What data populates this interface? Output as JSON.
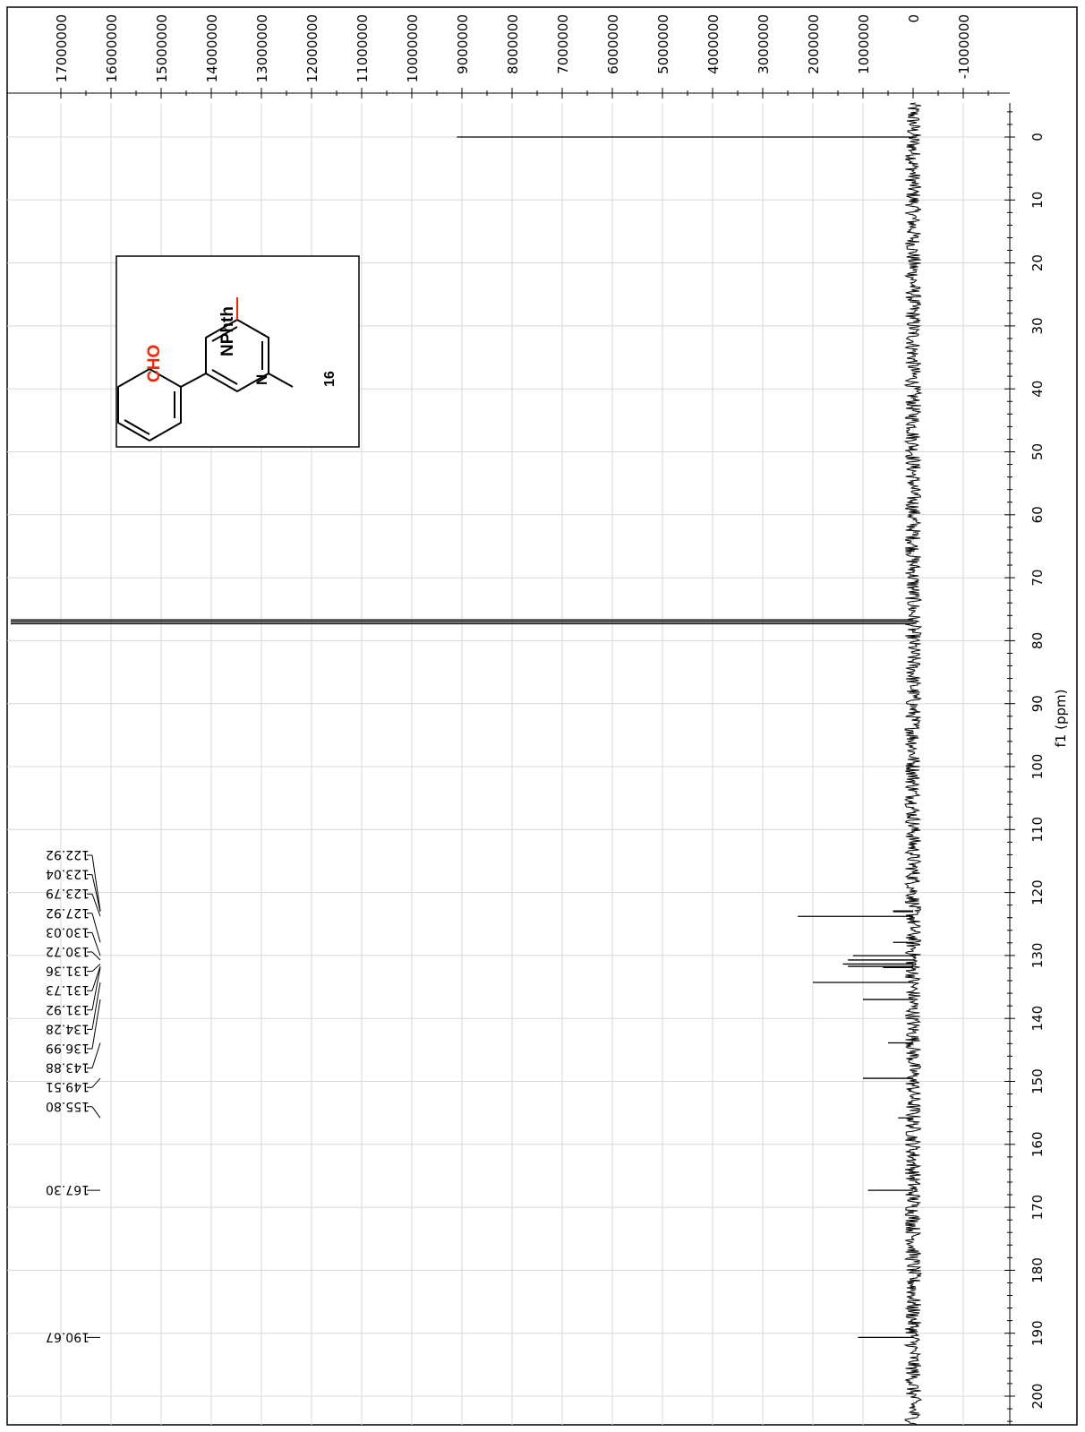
{
  "chart_data": {
    "type": "line",
    "orientation": "rotated-90",
    "xlabel": "f1 (ppm)",
    "ylabel": "",
    "xlim": [
      0,
      200
    ],
    "ylim": [
      -1500000,
      18000000
    ],
    "x_ticks": [
      0,
      10,
      20,
      30,
      40,
      50,
      60,
      70,
      80,
      90,
      100,
      110,
      120,
      130,
      140,
      150,
      160,
      170,
      180,
      190,
      200
    ],
    "x_tick_labels": [
      "0",
      "10",
      "20",
      "30",
      "40",
      "50",
      "60",
      "70",
      "80",
      "90",
      "100",
      "110",
      "120",
      "130",
      "140",
      "150",
      "160",
      "170",
      "180",
      "190",
      "200"
    ],
    "y_ticks": [
      17000000,
      16000000,
      15000000,
      14000000,
      13000000,
      12000000,
      11000000,
      10000000,
      9000000,
      8000000,
      7000000,
      6000000,
      5000000,
      4000000,
      3000000,
      2000000,
      1000000,
      0,
      -1000000
    ],
    "y_tick_labels": [
      "17000000",
      "16000000",
      "15000000",
      "14000000",
      "13000000",
      "12000000",
      "11000000",
      "10000000",
      "9000000",
      "8000000",
      "7000000",
      "6000000",
      "5000000",
      "4000000",
      "3000000",
      "2000000",
      "1000000",
      "0",
      "-1000000"
    ],
    "grid": true,
    "peaks": [
      {
        "ppm": 0.0,
        "intensity": 9100000
      },
      {
        "ppm": 76.7,
        "intensity": 18000000
      },
      {
        "ppm": 77.0,
        "intensity": 18000000
      },
      {
        "ppm": 77.3,
        "intensity": 18000000
      },
      {
        "ppm": 122.92,
        "intensity": 400000
      },
      {
        "ppm": 123.04,
        "intensity": 400000
      },
      {
        "ppm": 123.79,
        "intensity": 2300000
      },
      {
        "ppm": 127.92,
        "intensity": 400000
      },
      {
        "ppm": 130.03,
        "intensity": 1200000
      },
      {
        "ppm": 130.72,
        "intensity": 1300000
      },
      {
        "ppm": 131.36,
        "intensity": 1400000
      },
      {
        "ppm": 131.73,
        "intensity": 1300000
      },
      {
        "ppm": 131.92,
        "intensity": 600000
      },
      {
        "ppm": 134.28,
        "intensity": 2000000
      },
      {
        "ppm": 136.99,
        "intensity": 1000000
      },
      {
        "ppm": 143.88,
        "intensity": 500000
      },
      {
        "ppm": 149.51,
        "intensity": 1000000
      },
      {
        "ppm": 155.8,
        "intensity": 300000
      },
      {
        "ppm": 167.3,
        "intensity": 900000
      },
      {
        "ppm": 190.67,
        "intensity": 1100000
      }
    ],
    "peak_labels": [
      "122.92",
      "123.04",
      "123.79",
      "127.92",
      "130.03",
      "130.72",
      "131.36",
      "131.73",
      "131.92",
      "134.28",
      "136.99",
      "143.88",
      "149.51",
      "155.80",
      "167.30",
      "190.67"
    ],
    "peak_label_ppm": [
      122.92,
      123.04,
      123.79,
      127.92,
      130.03,
      130.72,
      131.36,
      131.73,
      131.92,
      134.28,
      136.99,
      143.88,
      149.51,
      155.8,
      167.3,
      190.67
    ],
    "noise_level": 100000
  },
  "structure": {
    "substituent": "CHO",
    "group": "NPhth",
    "heteroatom": "N",
    "compound_number": "16",
    "substituent_color": "#ff2200"
  }
}
